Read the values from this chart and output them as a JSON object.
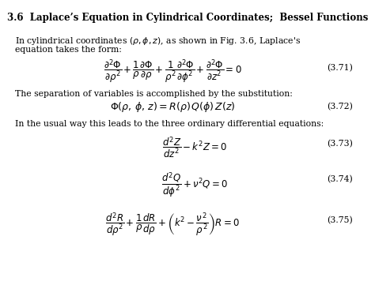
{
  "title": "3.6  Laplace’s Equation in Cylindrical Coordinates;  Bessel Functions",
  "para1_line1": "In cylindrical coordinates $(\\ rho, \\phi, z)$, as shown in Fig. 3.6, Laplace’s",
  "para1_line2": "equation takes the form:",
  "eq371_label": "(3.71)",
  "para2": "The separation of variables is accomplished by the substitution:",
  "eq372_label": "(3.72)",
  "para3": "In the usual way this leads to the three ordinary differential equations:",
  "eq373_label": "(3.73)",
  "eq374_label": "(3.74)",
  "eq375_label": "(3.75)",
  "bg_color": "#ffffff",
  "text_color": "#000000",
  "title_fontsize": 8.5,
  "body_fontsize": 7.8,
  "eq_fontsize": 8.5,
  "label_fontsize": 7.8
}
